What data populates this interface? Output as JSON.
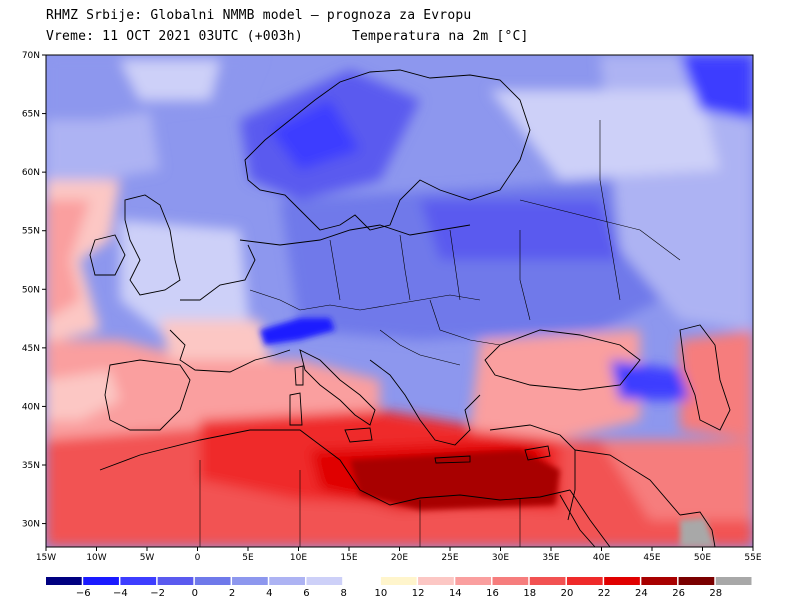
{
  "header": {
    "line1": "RHMZ Srbije: Globalni NMMB model — prognoza za Evropu",
    "line2_left": "Vreme: 11 OCT 2021 03UTC (+003h)",
    "line2_right": "Temperatura na 2m [°C]"
  },
  "map": {
    "projection": "lat-lon",
    "lon_range": [
      -15,
      55
    ],
    "lat_range": [
      28,
      70
    ],
    "lat_labels": [
      "70N",
      "65N",
      "60N",
      "55N",
      "50N",
      "45N",
      "40N",
      "35N",
      "30N"
    ],
    "lon_labels": [
      "15W",
      "10W",
      "5W",
      "0",
      "5E",
      "10E",
      "15E",
      "20E",
      "25E",
      "30E",
      "35E",
      "40E",
      "45E",
      "50E",
      "55E"
    ]
  },
  "legend": {
    "unit": "°C",
    "ticks": [
      "−6",
      "−4",
      "−2",
      "0",
      "2",
      "4",
      "6",
      "8",
      "10",
      "12",
      "14",
      "16",
      "18",
      "20",
      "22",
      "24",
      "26",
      "28"
    ],
    "colors": [
      "#000080",
      "#1a1aff",
      "#3d3dff",
      "#5a5aef",
      "#6f79ea",
      "#8d97ee",
      "#adb3f3",
      "#cdd0f8",
      "#ffffff",
      "#fff5cc",
      "#fcc7c4",
      "#fa9f9f",
      "#f67d7d",
      "#f25252",
      "#ef2a2a",
      "#e00000",
      "#a80000",
      "#7a0000",
      "#a8a8a8"
    ]
  }
}
